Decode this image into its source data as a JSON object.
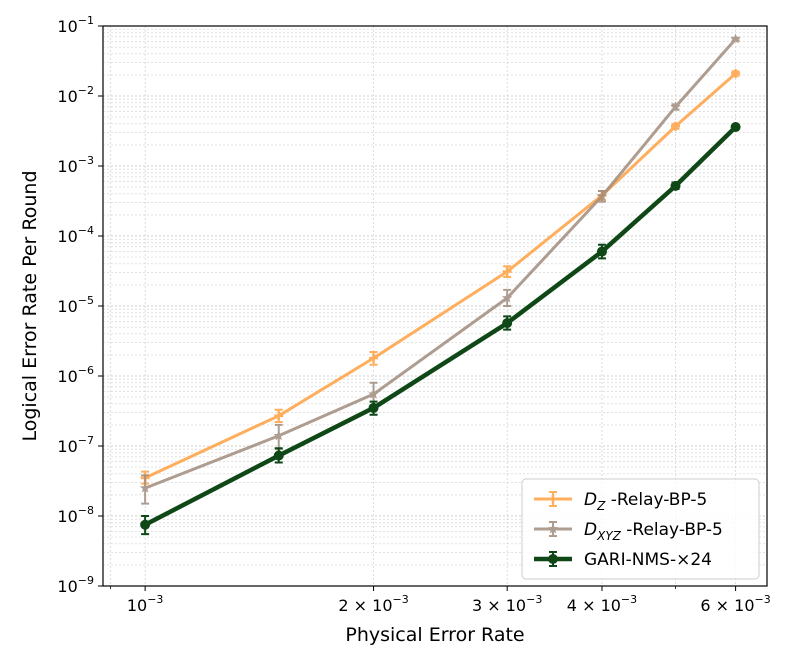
{
  "chart_data": {
    "type": "line",
    "xscale": "log",
    "yscale": "log",
    "xlabel": "Physical Error Rate",
    "ylabel": "Logical Error Rate Per Round",
    "xlim": [
      0.00088,
      0.0066
    ],
    "ylim": [
      1e-09,
      0.1
    ],
    "grid": true,
    "legend_position": "lower-right",
    "x_ticks": [
      {
        "value": 0.001,
        "base": "10",
        "exp": "−3",
        "mult": ""
      },
      {
        "value": 0.002,
        "base": "10",
        "exp": "−3",
        "mult": "2 × "
      },
      {
        "value": 0.003,
        "base": "10",
        "exp": "−3",
        "mult": "3 × "
      },
      {
        "value": 0.004,
        "base": "10",
        "exp": "−3",
        "mult": "4 × "
      },
      {
        "value": 0.006,
        "base": "10",
        "exp": "−3",
        "mult": "6 × "
      }
    ],
    "y_ticks": [
      {
        "value": 1e-09,
        "base": "10",
        "exp": "−9"
      },
      {
        "value": 1e-08,
        "base": "10",
        "exp": "−8"
      },
      {
        "value": 1e-07,
        "base": "10",
        "exp": "−7"
      },
      {
        "value": 1e-06,
        "base": "10",
        "exp": "−6"
      },
      {
        "value": 1e-05,
        "base": "10",
        "exp": "−5"
      },
      {
        "value": 0.0001,
        "base": "10",
        "exp": "−4"
      },
      {
        "value": 0.001,
        "base": "10",
        "exp": "−3"
      },
      {
        "value": 0.01,
        "base": "10",
        "exp": "−2"
      },
      {
        "value": 0.1,
        "base": "10",
        "exp": "−1"
      }
    ],
    "x": [
      0.001,
      0.0015,
      0.002,
      0.003,
      0.004,
      0.005,
      0.006
    ],
    "series": [
      {
        "name": "D_Z -Relay-BP-5",
        "label_main": "D",
        "label_sub": "Z",
        "label_rest": " -Relay-BP-5",
        "color": "#ffa64d",
        "opacity": 0.9,
        "width": 3,
        "marker": "plus",
        "values": [
          3.5e-08,
          2.7e-07,
          1.8e-06,
          3.1e-05,
          0.00038,
          0.0037,
          0.021
        ],
        "err_low": [
          2.9e-08,
          2.2e-07,
          1.45e-06,
          2.6e-05,
          0.00033,
          0.0034,
          0.0195
        ],
        "err_high": [
          4.3e-08,
          3.3e-07,
          2.2e-06,
          3.7e-05,
          0.00044,
          0.004,
          0.0225
        ]
      },
      {
        "name": "D_XYZ -Relay-BP-5",
        "label_main": "D",
        "label_sub": "XYZ",
        "label_rest": " -Relay-BP-5",
        "color": "#a08c7d",
        "opacity": 0.85,
        "width": 3,
        "marker": "star",
        "values": [
          2.5e-08,
          1.4e-07,
          5.5e-07,
          1.3e-05,
          0.00037,
          0.007,
          0.065
        ],
        "err_low": [
          1.5e-08,
          9e-08,
          3.8e-07,
          1e-05,
          0.00031,
          0.0064,
          0.062
        ],
        "err_high": [
          3.8e-08,
          2e-07,
          8e-07,
          1.7e-05,
          0.00044,
          0.0076,
          0.068
        ]
      },
      {
        "name": "GARI-NMS-×24",
        "label_main": "GARI-NMS-×24",
        "label_sub": "",
        "label_rest": "",
        "color": "#0f4717",
        "opacity": 1,
        "width": 4.5,
        "marker": "circle",
        "values": [
          7.5e-09,
          7.3e-08,
          3.5e-07,
          5.7e-06,
          6e-05,
          0.00052,
          0.0036
        ],
        "err_low": [
          5.5e-09,
          5.8e-08,
          2.8e-07,
          4.6e-06,
          4.8e-05,
          0.00047,
          0.0034
        ],
        "err_high": [
          1e-08,
          9.3e-08,
          4.3e-07,
          7.1e-06,
          7.5e-05,
          0.00058,
          0.00385
        ]
      }
    ]
  }
}
